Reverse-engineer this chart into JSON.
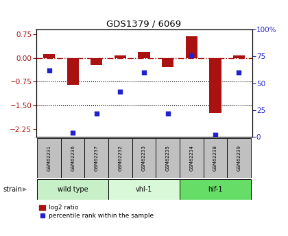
{
  "title": "GDS1379 / 6069",
  "samples": [
    "GSM62231",
    "GSM62236",
    "GSM62237",
    "GSM62232",
    "GSM62233",
    "GSM62235",
    "GSM62234",
    "GSM62238",
    "GSM62239"
  ],
  "log2_ratios": [
    0.12,
    -0.85,
    -0.22,
    0.08,
    0.18,
    -0.28,
    0.68,
    -1.75,
    0.08
  ],
  "percentile_ranks": [
    62,
    4,
    22,
    42,
    60,
    22,
    76,
    2,
    60
  ],
  "groups": [
    {
      "label": "wild type",
      "samples": [
        0,
        1,
        2
      ],
      "color": "#c8f0c8"
    },
    {
      "label": "vhl-1",
      "samples": [
        3,
        4,
        5
      ],
      "color": "#d8f8d8"
    },
    {
      "label": "hif-1",
      "samples": [
        6,
        7,
        8
      ],
      "color": "#66dd66"
    }
  ],
  "ylim_left": [
    -2.5,
    0.9
  ],
  "ylim_right": [
    0,
    100
  ],
  "yticks_left": [
    -2.25,
    -1.5,
    -0.75,
    0,
    0.75
  ],
  "yticks_right": [
    0,
    25,
    50,
    75,
    100
  ],
  "bar_color": "#aa1111",
  "dot_color": "#2222cc",
  "dotted_lines": [
    -0.75,
    -1.5
  ],
  "bar_width": 0.5,
  "background_color": "#ffffff",
  "plot_bg": "#ffffff",
  "strain_label": "strain",
  "legend_bar_label": "log2 ratio",
  "legend_dot_label": "percentile rank within the sample",
  "sample_box_color": "#c0c0c0"
}
